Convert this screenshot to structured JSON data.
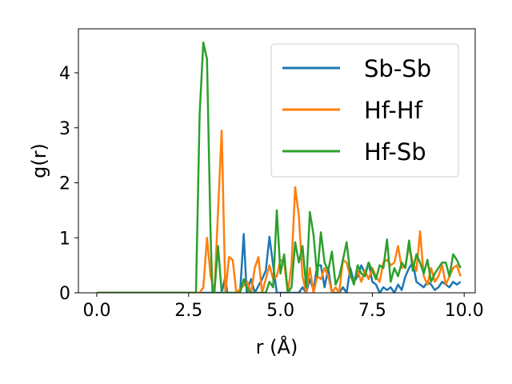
{
  "chart_data": {
    "type": "line",
    "title": "",
    "xlabel": "r (Å)",
    "ylabel": "g(r)",
    "xlim": [
      -0.5,
      10.3
    ],
    "ylim": [
      0,
      4.8
    ],
    "xticks": [
      0.0,
      2.5,
      5.0,
      7.5,
      10.0
    ],
    "xtick_labels": [
      "0.0",
      "2.5",
      "5.0",
      "7.5",
      "10.0"
    ],
    "yticks": [
      0,
      1,
      2,
      3,
      4
    ],
    "ytick_labels": [
      "0",
      "1",
      "2",
      "3",
      "4"
    ],
    "grid": false,
    "legend_position": "top-right",
    "series": [
      {
        "name": "Sb-Sb",
        "color": "#1f77b4",
        "points": [
          [
            0.0,
            0
          ],
          [
            2.6,
            0
          ],
          [
            3.4,
            0
          ],
          [
            3.5,
            0.3
          ],
          [
            3.55,
            0
          ],
          [
            3.9,
            0
          ],
          [
            4.0,
            1.07
          ],
          [
            4.08,
            0
          ],
          [
            4.2,
            0.25
          ],
          [
            4.3,
            0
          ],
          [
            4.5,
            0.25
          ],
          [
            4.6,
            0.4
          ],
          [
            4.7,
            1.02
          ],
          [
            4.8,
            0.5
          ],
          [
            4.9,
            0
          ],
          [
            5.5,
            0
          ],
          [
            5.6,
            0.1
          ],
          [
            5.7,
            0
          ],
          [
            5.8,
            0.25
          ],
          [
            5.9,
            0.05
          ],
          [
            6.0,
            0.5
          ],
          [
            6.1,
            0.5
          ],
          [
            6.2,
            0.1
          ],
          [
            6.3,
            0.45
          ],
          [
            6.4,
            0
          ],
          [
            6.6,
            0
          ],
          [
            6.7,
            0.1
          ],
          [
            6.8,
            0
          ],
          [
            6.9,
            0.45
          ],
          [
            7.0,
            0.2
          ],
          [
            7.1,
            0.3
          ],
          [
            7.2,
            0.5
          ],
          [
            7.3,
            0.35
          ],
          [
            7.4,
            0.55
          ],
          [
            7.5,
            0.2
          ],
          [
            7.6,
            0.15
          ],
          [
            7.7,
            0
          ],
          [
            7.8,
            0.1
          ],
          [
            7.9,
            0.05
          ],
          [
            8.0,
            0.1
          ],
          [
            8.1,
            0
          ],
          [
            8.2,
            0.15
          ],
          [
            8.3,
            0.05
          ],
          [
            8.4,
            0.3
          ],
          [
            8.5,
            0.45
          ],
          [
            8.6,
            0.55
          ],
          [
            8.7,
            0.2
          ],
          [
            8.8,
            0.15
          ],
          [
            8.9,
            0.1
          ],
          [
            9.0,
            0.2
          ],
          [
            9.1,
            0.15
          ],
          [
            9.2,
            0.05
          ],
          [
            9.3,
            0.1
          ],
          [
            9.4,
            0.2
          ],
          [
            9.5,
            0.15
          ],
          [
            9.6,
            0.1
          ],
          [
            9.7,
            0.2
          ],
          [
            9.8,
            0.15
          ],
          [
            9.9,
            0.2
          ]
        ]
      },
      {
        "name": "Hf-Hf",
        "color": "#ff7f0e",
        "points": [
          [
            0.0,
            0
          ],
          [
            2.8,
            0
          ],
          [
            2.9,
            0.1
          ],
          [
            3.0,
            1.0
          ],
          [
            3.1,
            0.3
          ],
          [
            3.2,
            0
          ],
          [
            3.4,
            2.95
          ],
          [
            3.5,
            0
          ],
          [
            3.6,
            0.65
          ],
          [
            3.7,
            0.6
          ],
          [
            3.8,
            0
          ],
          [
            4.1,
            0.2
          ],
          [
            4.2,
            0
          ],
          [
            4.3,
            0.45
          ],
          [
            4.4,
            0.65
          ],
          [
            4.5,
            0
          ],
          [
            4.6,
            0.25
          ],
          [
            4.7,
            0.5
          ],
          [
            4.8,
            0.25
          ],
          [
            4.9,
            0.3
          ],
          [
            5.0,
            0.6
          ],
          [
            5.1,
            0.55
          ],
          [
            5.2,
            0
          ],
          [
            5.3,
            0.5
          ],
          [
            5.4,
            1.92
          ],
          [
            5.5,
            1.4
          ],
          [
            5.6,
            0.3
          ],
          [
            5.7,
            0
          ],
          [
            5.8,
            0.45
          ],
          [
            5.9,
            0
          ],
          [
            6.0,
            0.3
          ],
          [
            6.1,
            0.25
          ],
          [
            6.2,
            0.45
          ],
          [
            6.3,
            0.3
          ],
          [
            6.4,
            0
          ],
          [
            6.5,
            0.1
          ],
          [
            6.6,
            0
          ],
          [
            6.7,
            0.6
          ],
          [
            6.8,
            0.55
          ],
          [
            6.9,
            0.3
          ],
          [
            7.0,
            0.2
          ],
          [
            7.1,
            0.4
          ],
          [
            7.2,
            0.2
          ],
          [
            7.3,
            0.4
          ],
          [
            7.4,
            0.25
          ],
          [
            7.5,
            0.45
          ],
          [
            7.6,
            0.3
          ],
          [
            7.7,
            0.2
          ],
          [
            7.8,
            0.55
          ],
          [
            7.9,
            0.6
          ],
          [
            8.0,
            0.5
          ],
          [
            8.1,
            0.55
          ],
          [
            8.2,
            0.85
          ],
          [
            8.3,
            0.45
          ],
          [
            8.4,
            0.5
          ],
          [
            8.5,
            0.85
          ],
          [
            8.6,
            0.55
          ],
          [
            8.7,
            0.4
          ],
          [
            8.8,
            1.12
          ],
          [
            8.9,
            0.3
          ],
          [
            9.0,
            0.15
          ],
          [
            9.1,
            0.45
          ],
          [
            9.2,
            0.2
          ],
          [
            9.3,
            0.3
          ],
          [
            9.4,
            0.5
          ],
          [
            9.5,
            0.15
          ],
          [
            9.6,
            0.3
          ],
          [
            9.7,
            0.45
          ],
          [
            9.8,
            0.5
          ],
          [
            9.9,
            0.3
          ]
        ]
      },
      {
        "name": "Hf-Sb",
        "color": "#2ca02c",
        "points": [
          [
            0.0,
            0
          ],
          [
            2.7,
            0
          ],
          [
            2.8,
            3.25
          ],
          [
            2.9,
            4.55
          ],
          [
            3.0,
            4.25
          ],
          [
            3.1,
            1.0
          ],
          [
            3.15,
            0
          ],
          [
            3.2,
            0
          ],
          [
            3.3,
            0.85
          ],
          [
            3.4,
            0
          ],
          [
            3.9,
            0
          ],
          [
            4.0,
            0.25
          ],
          [
            4.1,
            0.05
          ],
          [
            4.2,
            0
          ],
          [
            4.6,
            0
          ],
          [
            4.7,
            0.2
          ],
          [
            4.8,
            0.1
          ],
          [
            4.9,
            1.5
          ],
          [
            5.0,
            0.35
          ],
          [
            5.1,
            0.7
          ],
          [
            5.2,
            0
          ],
          [
            5.3,
            0.1
          ],
          [
            5.4,
            0.92
          ],
          [
            5.5,
            0.55
          ],
          [
            5.6,
            0.85
          ],
          [
            5.7,
            0.1
          ],
          [
            5.8,
            1.47
          ],
          [
            5.9,
            1.05
          ],
          [
            6.0,
            0.3
          ],
          [
            6.1,
            1.1
          ],
          [
            6.2,
            0.55
          ],
          [
            6.3,
            0.4
          ],
          [
            6.4,
            0.75
          ],
          [
            6.5,
            0.15
          ],
          [
            6.6,
            0.3
          ],
          [
            6.7,
            0.6
          ],
          [
            6.8,
            0.92
          ],
          [
            6.9,
            0.35
          ],
          [
            7.0,
            0.15
          ],
          [
            7.1,
            0.5
          ],
          [
            7.2,
            0.35
          ],
          [
            7.3,
            0.3
          ],
          [
            7.4,
            0.55
          ],
          [
            7.5,
            0.4
          ],
          [
            7.6,
            0.25
          ],
          [
            7.7,
            0.5
          ],
          [
            7.8,
            0.45
          ],
          [
            7.9,
            0.97
          ],
          [
            8.0,
            0.2
          ],
          [
            8.1,
            0.45
          ],
          [
            8.2,
            0.3
          ],
          [
            8.3,
            0.55
          ],
          [
            8.4,
            0.45
          ],
          [
            8.5,
            0.95
          ],
          [
            8.6,
            0.4
          ],
          [
            8.7,
            0.7
          ],
          [
            8.8,
            0.55
          ],
          [
            8.9,
            0.35
          ],
          [
            9.0,
            0.6
          ],
          [
            9.1,
            0.2
          ],
          [
            9.2,
            0.35
          ],
          [
            9.3,
            0.45
          ],
          [
            9.4,
            0.55
          ],
          [
            9.5,
            0.55
          ],
          [
            9.6,
            0.3
          ],
          [
            9.7,
            0.7
          ],
          [
            9.8,
            0.6
          ],
          [
            9.9,
            0.45
          ]
        ]
      }
    ]
  }
}
